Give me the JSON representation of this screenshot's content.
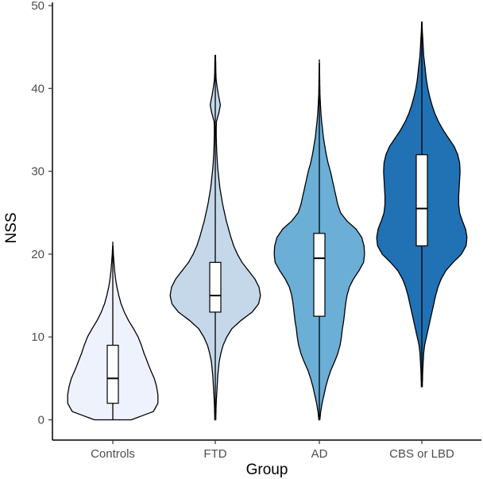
{
  "chart_data": {
    "type": "violin",
    "title": "",
    "xlabel": "Group",
    "ylabel": "NSS",
    "ylim": [
      0,
      50
    ],
    "yticks": [
      0,
      10,
      20,
      30,
      40,
      50
    ],
    "grid": false,
    "legend": "none",
    "categories": [
      "Controls",
      "FTD",
      "AD",
      "CBS or LBD"
    ],
    "series": [
      {
        "name": "Controls",
        "color": "#eef2fd",
        "box": {
          "min": 0,
          "q1": 2,
          "median": 5,
          "q3": 9,
          "max": 21.5
        },
        "density": [
          [
            0,
            0.4
          ],
          [
            1,
            0.88
          ],
          [
            2,
            0.98
          ],
          [
            3,
            0.98
          ],
          [
            4,
            0.95
          ],
          [
            5,
            0.9
          ],
          [
            6,
            0.82
          ],
          [
            7,
            0.75
          ],
          [
            8,
            0.68
          ],
          [
            9,
            0.62
          ],
          [
            10,
            0.55
          ],
          [
            11,
            0.45
          ],
          [
            12,
            0.34
          ],
          [
            13,
            0.25
          ],
          [
            14,
            0.18
          ],
          [
            15,
            0.13
          ],
          [
            16,
            0.09
          ],
          [
            17,
            0.06
          ],
          [
            18,
            0.04
          ],
          [
            19,
            0.025
          ],
          [
            20,
            0.012
          ],
          [
            21,
            0.004
          ]
        ]
      },
      {
        "name": "FTD",
        "color": "#c5d8ea",
        "box": {
          "min": 0,
          "q1": 13,
          "median": 15,
          "q3": 19,
          "max": 44
        },
        "density": [
          [
            0,
            0.01
          ],
          [
            1,
            0.015
          ],
          [
            2,
            0.02
          ],
          [
            3,
            0.03
          ],
          [
            4,
            0.04
          ],
          [
            5,
            0.05
          ],
          [
            6,
            0.065
          ],
          [
            7,
            0.085
          ],
          [
            8,
            0.12
          ],
          [
            9,
            0.17
          ],
          [
            10,
            0.25
          ],
          [
            11,
            0.36
          ],
          [
            12,
            0.56
          ],
          [
            13,
            0.8
          ],
          [
            14,
            0.94
          ],
          [
            15,
            0.98
          ],
          [
            16,
            0.95
          ],
          [
            17,
            0.86
          ],
          [
            18,
            0.72
          ],
          [
            19,
            0.58
          ],
          [
            20,
            0.48
          ],
          [
            21,
            0.4
          ],
          [
            22,
            0.34
          ],
          [
            23,
            0.29
          ],
          [
            24,
            0.24
          ],
          [
            25,
            0.2
          ],
          [
            26,
            0.16
          ],
          [
            27,
            0.13
          ],
          [
            28,
            0.1
          ],
          [
            29,
            0.08
          ],
          [
            30,
            0.06
          ],
          [
            31,
            0.045
          ],
          [
            32,
            0.035
          ],
          [
            33,
            0.028
          ],
          [
            34,
            0.022
          ],
          [
            35,
            0.02
          ],
          [
            36,
            0.025
          ],
          [
            37,
            0.075
          ],
          [
            38,
            0.11
          ],
          [
            39,
            0.075
          ],
          [
            40,
            0.045
          ],
          [
            41,
            0.02
          ],
          [
            42,
            0.012
          ],
          [
            43,
            0.01
          ],
          [
            44,
            0.005
          ]
        ]
      },
      {
        "name": "AD",
        "color": "#6baed6",
        "box": {
          "min": 0,
          "q1": 12.5,
          "median": 19.5,
          "q3": 22.5,
          "max": 43.5
        },
        "density": [
          [
            0,
            0.01
          ],
          [
            1,
            0.03
          ],
          [
            2,
            0.06
          ],
          [
            3,
            0.1
          ],
          [
            4,
            0.14
          ],
          [
            5,
            0.19
          ],
          [
            6,
            0.25
          ],
          [
            7,
            0.33
          ],
          [
            8,
            0.4
          ],
          [
            9,
            0.45
          ],
          [
            10,
            0.48
          ],
          [
            11,
            0.5
          ],
          [
            12,
            0.53
          ],
          [
            13,
            0.55
          ],
          [
            14,
            0.57
          ],
          [
            15,
            0.6
          ],
          [
            16,
            0.65
          ],
          [
            17,
            0.74
          ],
          [
            18,
            0.86
          ],
          [
            19,
            0.96
          ],
          [
            20,
            0.98
          ],
          [
            21,
            0.97
          ],
          [
            22,
            0.92
          ],
          [
            23,
            0.8
          ],
          [
            24,
            0.6
          ],
          [
            25,
            0.46
          ],
          [
            26,
            0.4
          ],
          [
            27,
            0.36
          ],
          [
            28,
            0.32
          ],
          [
            29,
            0.28
          ],
          [
            30,
            0.24
          ],
          [
            31,
            0.19
          ],
          [
            32,
            0.15
          ],
          [
            33,
            0.12
          ],
          [
            34,
            0.09
          ],
          [
            35,
            0.07
          ],
          [
            36,
            0.05
          ],
          [
            37,
            0.035
          ],
          [
            38,
            0.025
          ],
          [
            39,
            0.015
          ],
          [
            40,
            0.01
          ],
          [
            41,
            0.008
          ],
          [
            42,
            0.005
          ],
          [
            43,
            0.003
          ]
        ]
      },
      {
        "name": "CBS or LBD",
        "color": "#2171b5",
        "box": {
          "min": 4,
          "q1": 21,
          "median": 25.5,
          "q3": 32,
          "max": 48
        },
        "density": [
          [
            4,
            0.01
          ],
          [
            5,
            0.015
          ],
          [
            6,
            0.02
          ],
          [
            7,
            0.03
          ],
          [
            8,
            0.04
          ],
          [
            9,
            0.06
          ],
          [
            10,
            0.1
          ],
          [
            11,
            0.14
          ],
          [
            12,
            0.18
          ],
          [
            13,
            0.22
          ],
          [
            14,
            0.26
          ],
          [
            15,
            0.3
          ],
          [
            16,
            0.35
          ],
          [
            17,
            0.42
          ],
          [
            18,
            0.52
          ],
          [
            19,
            0.68
          ],
          [
            20,
            0.86
          ],
          [
            21,
            0.96
          ],
          [
            22,
            0.98
          ],
          [
            23,
            0.95
          ],
          [
            24,
            0.88
          ],
          [
            25,
            0.82
          ],
          [
            26,
            0.8
          ],
          [
            27,
            0.8
          ],
          [
            28,
            0.81
          ],
          [
            29,
            0.82
          ],
          [
            30,
            0.83
          ],
          [
            31,
            0.82
          ],
          [
            32,
            0.78
          ],
          [
            33,
            0.7
          ],
          [
            34,
            0.58
          ],
          [
            35,
            0.46
          ],
          [
            36,
            0.36
          ],
          [
            37,
            0.28
          ],
          [
            38,
            0.22
          ],
          [
            39,
            0.17
          ],
          [
            40,
            0.13
          ],
          [
            41,
            0.1
          ],
          [
            42,
            0.08
          ],
          [
            43,
            0.06
          ],
          [
            44,
            0.04
          ],
          [
            45,
            0.03
          ],
          [
            46,
            0.02
          ],
          [
            47,
            0.01
          ],
          [
            48,
            0.005
          ]
        ]
      }
    ]
  }
}
